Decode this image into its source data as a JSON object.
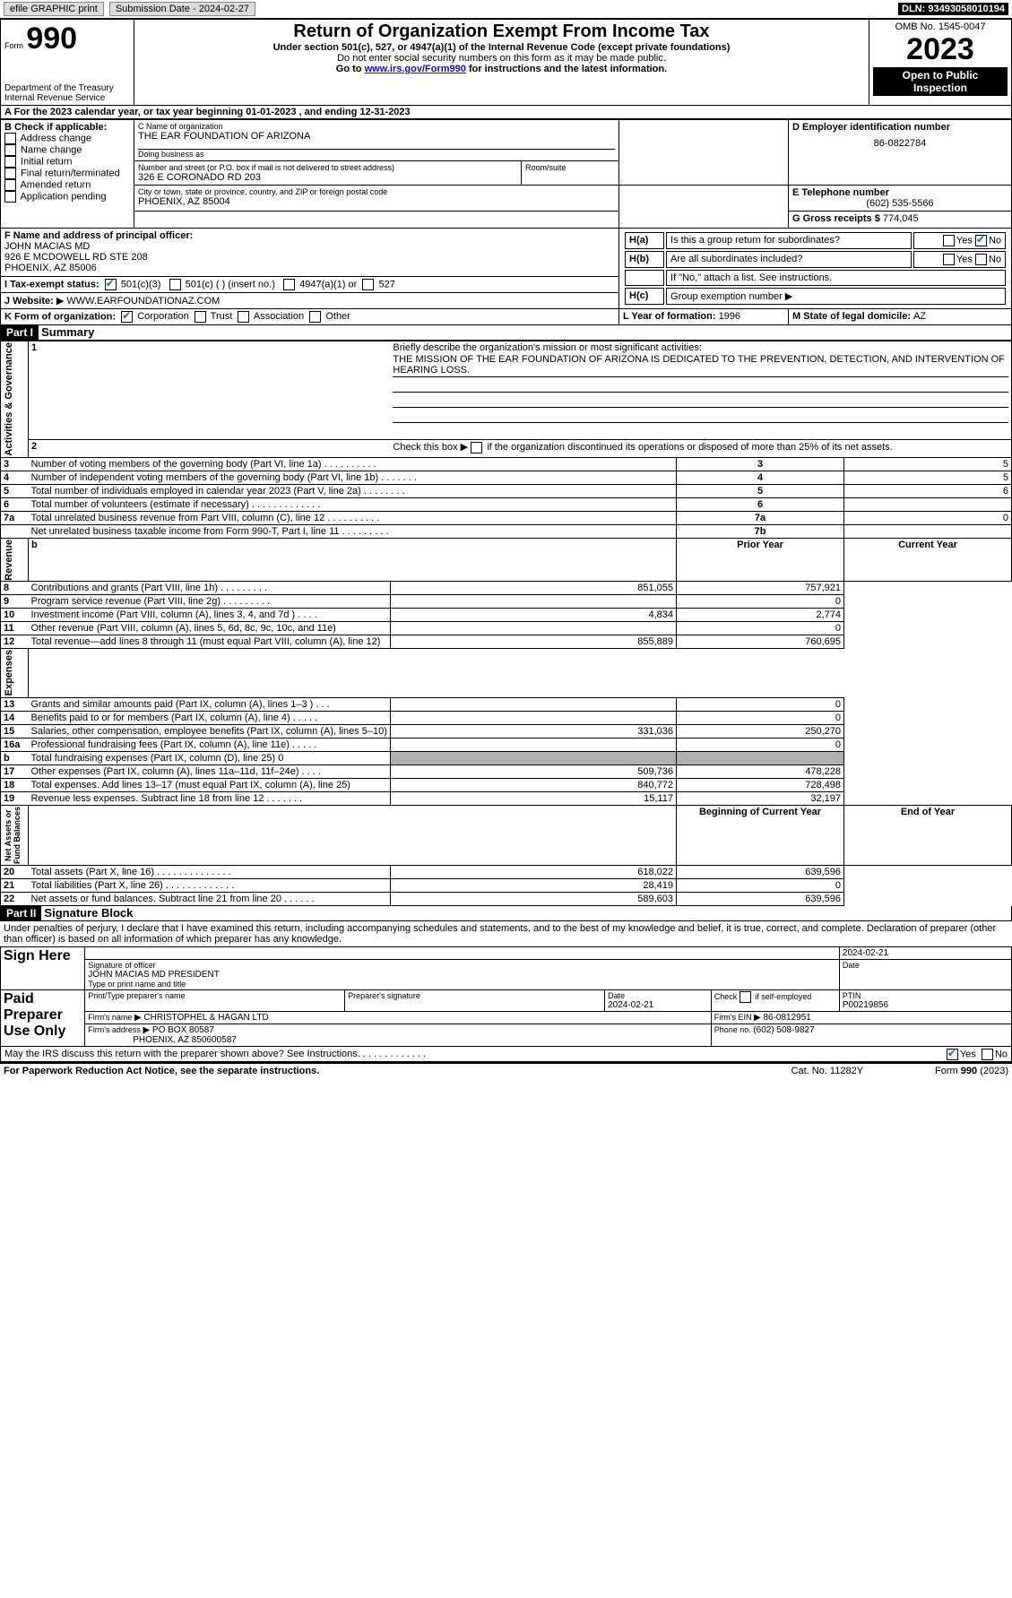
{
  "topbar": {
    "efile_label": "efile GRAPHIC print",
    "submission_label": "Submission Date - 2024-02-27",
    "dln_label": "DLN: 93493058010194"
  },
  "header": {
    "form_label_small": "Form",
    "form_number": "990",
    "dept": "Department of the Treasury\nInternal Revenue Service",
    "title": "Return of Organization Exempt From Income Tax",
    "subtitle1": "Under section 501(c), 527, or 4947(a)(1) of the Internal Revenue Code (except private foundations)",
    "subtitle2": "Do not enter social security numbers on this form as it may be made public.",
    "subtitle3_prefix": "Go to ",
    "subtitle3_link": "www.irs.gov/Form990",
    "subtitle3_suffix": " for instructions and the latest information.",
    "omb": "OMB No. 1545-0047",
    "year": "2023",
    "public": "Open to Public Inspection"
  },
  "A": {
    "text_prefix": "A For the 2023 calendar year, or tax year beginning ",
    "begin": "01-01-2023",
    "mid": " , and ending ",
    "end": "12-31-2023"
  },
  "B": {
    "label": "B Check if applicable:",
    "opts": [
      "Address change",
      "Name change",
      "Initial return",
      "Final return/terminated",
      "Amended return",
      "Application pending"
    ]
  },
  "C": {
    "label_name": "C Name of organization",
    "name": "THE EAR FOUNDATION OF ARIZONA",
    "dba_label": "Doing business as",
    "dba": "",
    "addr_label": "Number and street (or P.O. box if mail is not delivered to street address)",
    "addr": "326 E CORONADO RD 203",
    "room_label": "Room/suite",
    "room": "",
    "city_label": "City or town, state or province, country, and ZIP or foreign postal code",
    "city": "PHOENIX, AZ  85004"
  },
  "D": {
    "label": "D Employer identification number",
    "value": "86-0822784"
  },
  "E": {
    "label": "E Telephone number",
    "value": "(602) 535-5566"
  },
  "G": {
    "label": "G Gross receipts $ ",
    "value": "774,045"
  },
  "F": {
    "label": "F  Name and address of principal officer:",
    "line1": "JOHN MACIAS MD",
    "line2": "926 E MCDOWELL RD STE 208",
    "line3": "PHOENIX, AZ  85006"
  },
  "H": {
    "a_label": "H(a)  Is this a group return for subordinates?",
    "a_yes": "Yes",
    "a_no": "No",
    "b_label": "H(b)  Are all subordinates included?",
    "b_yes": "Yes",
    "b_no": "No",
    "b_note": "If \"No,\" attach a list. See instructions.",
    "c_label": "H(c)  Group exemption number "
  },
  "I": {
    "label": "I     Tax-exempt status:",
    "opt1": "501(c)(3)",
    "opt2": "501(c) (  ) (insert no.)",
    "opt3": "4947(a)(1) or",
    "opt4": "527"
  },
  "J": {
    "label": "J     Website: ",
    "value": "WWW.EARFOUNDATIONAZ.COM"
  },
  "K": {
    "label": "K Form of organization:",
    "opts": [
      "Corporation",
      "Trust",
      "Association",
      "Other"
    ]
  },
  "L": {
    "label": "L Year of formation: ",
    "value": "1996"
  },
  "M": {
    "label": "M State of legal domicile: ",
    "value": "AZ"
  },
  "partI": {
    "title": "Part I",
    "name": "Summary",
    "line1_label": "Briefly describe the organization's mission or most significant activities:",
    "mission": "THE MISSION OF THE EAR FOUNDATION OF ARIZONA IS DEDICATED TO THE PREVENTION, DETECTION, AND INTERVENTION OF HEARING LOSS.",
    "line2": "Check this box  if the organization discontinued its operations or disposed of more than 25% of its net assets.",
    "rows_top": [
      {
        "n": "3",
        "text": "Number of voting members of the governing body (Part VI, line 1a)   .   .   .   .   .   .   .   .   .   .",
        "box": "3",
        "val": "5"
      },
      {
        "n": "4",
        "text": "Number of independent voting members of the governing body (Part VI, line 1b)   .   .   .   .   .   .   .",
        "box": "4",
        "val": "5"
      },
      {
        "n": "5",
        "text": "Total number of individuals employed in calendar year 2023 (Part V, line 2a)   .   .   .   .   .   .   .   .",
        "box": "5",
        "val": "6"
      },
      {
        "n": "6",
        "text": "Total number of volunteers (estimate if necessary)   .   .   .   .   .   .   .   .   .   .   .   .   .",
        "box": "6",
        "val": ""
      },
      {
        "n": "7a",
        "text": "Total unrelated business revenue from Part VIII, column (C), line 12   .   .   .   .   .   .   .   .   .   .",
        "box": "7a",
        "val": "0"
      },
      {
        "n": "",
        "text": "Net unrelated business taxable income from Form 990-T, Part I, line 11   .   .   .   .   .   .   .   .   .",
        "box": "7b",
        "val": ""
      }
    ],
    "col_prior": "Prior Year",
    "col_current": "Current Year",
    "revenue": [
      {
        "n": "8",
        "text": "Contributions and grants (Part VIII, line 1h)   .   .   .   .   .   .   .   .   .",
        "p": "851,055",
        "c": "757,921"
      },
      {
        "n": "9",
        "text": "Program service revenue (Part VIII, line 2g)   .   .   .   .   .   .   .   .   .",
        "p": "",
        "c": "0"
      },
      {
        "n": "10",
        "text": "Investment income (Part VIII, column (A), lines 3, 4, and 7d )   .   .   .   .",
        "p": "4,834",
        "c": "2,774"
      },
      {
        "n": "11",
        "text": "Other revenue (Part VIII, column (A), lines 5, 6d, 8c, 9c, 10c, and 11e)",
        "p": "",
        "c": "0"
      },
      {
        "n": "12",
        "text": "Total revenue—add lines 8 through 11 (must equal Part VIII, column (A), line 12)",
        "p": "855,889",
        "c": "760,695"
      }
    ],
    "expenses": [
      {
        "n": "13",
        "text": "Grants and similar amounts paid (Part IX, column (A), lines 1–3 )  .   .   .",
        "p": "",
        "c": "0"
      },
      {
        "n": "14",
        "text": "Benefits paid to or for members (Part IX, column (A), line 4)   .   .   .   .   .",
        "p": "",
        "c": "0"
      },
      {
        "n": "15",
        "text": "Salaries, other compensation, employee benefits (Part IX, column (A), lines 5–10)",
        "p": "331,036",
        "c": "250,270"
      },
      {
        "n": "16a",
        "text": "Professional fundraising fees (Part IX, column (A), line 11e)   .   .   .   .   .",
        "p": "",
        "c": "0"
      },
      {
        "n": "b",
        "text": "Total fundraising expenses (Part IX, column (D), line 25) 0",
        "p": "SHADE",
        "c": "SHADE"
      },
      {
        "n": "17",
        "text": "Other expenses (Part IX, column (A), lines 11a–11d, 11f–24e)   .   .   .   .",
        "p": "509,736",
        "c": "478,228"
      },
      {
        "n": "18",
        "text": "Total expenses. Add lines 13–17 (must equal Part IX, column (A), line 25)",
        "p": "840,772",
        "c": "728,498"
      },
      {
        "n": "19",
        "text": "Revenue less expenses. Subtract line 18 from line 12   .   .   .   .   .   .   .",
        "p": "15,117",
        "c": "32,197"
      }
    ],
    "col_begin": "Beginning of Current Year",
    "col_end": "End of Year",
    "net": [
      {
        "n": "20",
        "text": "Total assets (Part X, line 16)   .   .   .   .   .   .   .   .   .   .   .   .   .   .",
        "p": "618,022",
        "c": "639,596"
      },
      {
        "n": "21",
        "text": "Total liabilities (Part X, line 26)   .   .   .   .   .   .   .   .   .   .   .   .   .",
        "p": "28,419",
        "c": "0"
      },
      {
        "n": "22",
        "text": "Net assets or fund balances. Subtract line 21 from line 20   .   .   .   .   .   .",
        "p": "589,603",
        "c": "639,596"
      }
    ],
    "vlabels": {
      "gov": "Activities & Governance",
      "rev": "Revenue",
      "exp": "Expenses",
      "net": "Net Assets or\nFund Balances"
    }
  },
  "partII": {
    "title": "Part II",
    "name": "Signature Block",
    "decl": "Under penalties of perjury, I declare that I have examined this return, including accompanying schedules and statements, and to the best of my knowledge and belief, it is true, correct, and complete. Declaration of preparer (other than officer) is based on all information of which preparer has any knowledge.",
    "sign_here": "Sign Here",
    "sig_officer_label": "Signature of officer",
    "sig_date": "2024-02-21",
    "sig_date_label": "Date",
    "officer": "JOHN MACIAS MD PRESIDENT",
    "officer_label": "Type or print name and title",
    "paid": "Paid Preparer Use Only",
    "prep_name_label": "Print/Type preparer's name",
    "prep_sig_label": "Preparer's signature",
    "prep_date_label": "Date",
    "prep_date": "2024-02-21",
    "prep_check_label": "Check         if self-employed",
    "ptin_label": "PTIN",
    "ptin": "P00219856",
    "firm_name_label": "Firm's name    ",
    "firm_name": "CHRISTOPHEL & HAGAN LTD",
    "firm_ein_label": "Firm's EIN  ",
    "firm_ein": "86-0812951",
    "firm_addr_label": "Firm's address ",
    "firm_addr1": "PO BOX 80587",
    "firm_addr2": "PHOENIX, AZ  850600587",
    "firm_phone_label": "Phone no. ",
    "firm_phone": "(602) 508-9827",
    "discuss": "May the IRS discuss this return with the preparer shown above? See Instructions.   .   .   .   .   .   .   .   .   .   .   .   .",
    "discuss_yes": "Yes",
    "discuss_no": "No"
  },
  "footer": {
    "left": "For Paperwork Reduction Act Notice, see the separate instructions.",
    "mid": "Cat. No. 11282Y",
    "right": "Form 990 (2023)"
  }
}
